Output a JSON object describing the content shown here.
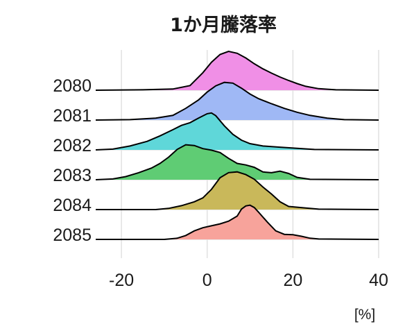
{
  "chart_data": {
    "type": "ridgeline",
    "title": "1か月騰落率",
    "xlabel": "[%]",
    "ylabel": "",
    "xlim": [
      -26,
      40
    ],
    "xticks": [
      -20,
      0,
      20,
      40
    ],
    "grid": true,
    "legend": "none",
    "series": [
      {
        "name": "2080",
        "color": "#f08fe6",
        "points": [
          [
            -26,
            0
          ],
          [
            -15,
            0.01
          ],
          [
            -8,
            0.03
          ],
          [
            -4,
            0.12
          ],
          [
            -1,
            0.45
          ],
          [
            1,
            0.72
          ],
          [
            3,
            0.92
          ],
          [
            5,
            1.0
          ],
          [
            7,
            0.95
          ],
          [
            9,
            0.83
          ],
          [
            11,
            0.68
          ],
          [
            13,
            0.55
          ],
          [
            15,
            0.44
          ],
          [
            17,
            0.34
          ],
          [
            19,
            0.25
          ],
          [
            21,
            0.17
          ],
          [
            23,
            0.1
          ],
          [
            26,
            0.04
          ],
          [
            30,
            0.01
          ],
          [
            40,
            0
          ]
        ]
      },
      {
        "name": "2081",
        "color": "#9fb8f5",
        "points": [
          [
            -26,
            0
          ],
          [
            -18,
            0.01
          ],
          [
            -12,
            0.05
          ],
          [
            -8,
            0.12
          ],
          [
            -5,
            0.3
          ],
          [
            -2,
            0.52
          ],
          [
            0,
            0.72
          ],
          [
            2,
            0.88
          ],
          [
            4,
            0.97
          ],
          [
            6,
            0.95
          ],
          [
            8,
            0.82
          ],
          [
            10,
            0.67
          ],
          [
            12,
            0.55
          ],
          [
            15,
            0.42
          ],
          [
            18,
            0.3
          ],
          [
            21,
            0.2
          ],
          [
            24,
            0.12
          ],
          [
            28,
            0.05
          ],
          [
            32,
            0.01
          ],
          [
            40,
            0
          ]
        ]
      },
      {
        "name": "2082",
        "color": "#5fd7d9",
        "points": [
          [
            -26,
            0
          ],
          [
            -22,
            0.02
          ],
          [
            -18,
            0.1
          ],
          [
            -14,
            0.22
          ],
          [
            -11,
            0.36
          ],
          [
            -8,
            0.52
          ],
          [
            -6,
            0.63
          ],
          [
            -4,
            0.7
          ],
          [
            -2,
            0.82
          ],
          [
            0,
            0.93
          ],
          [
            1,
            0.95
          ],
          [
            2,
            0.88
          ],
          [
            4,
            0.62
          ],
          [
            6,
            0.4
          ],
          [
            8,
            0.25
          ],
          [
            10,
            0.16
          ],
          [
            13,
            0.1
          ],
          [
            17,
            0.07
          ],
          [
            21,
            0.04
          ],
          [
            25,
            0.01
          ],
          [
            40,
            0
          ]
        ]
      },
      {
        "name": "2083",
        "color": "#5fcc74",
        "points": [
          [
            -26,
            0
          ],
          [
            -22,
            0.02
          ],
          [
            -19,
            0.08
          ],
          [
            -16,
            0.18
          ],
          [
            -13,
            0.3
          ],
          [
            -11,
            0.42
          ],
          [
            -9,
            0.58
          ],
          [
            -7,
            0.78
          ],
          [
            -5,
            0.9
          ],
          [
            -3,
            0.88
          ],
          [
            -1,
            0.8
          ],
          [
            1,
            0.76
          ],
          [
            3,
            0.7
          ],
          [
            5,
            0.55
          ],
          [
            7,
            0.42
          ],
          [
            9,
            0.38
          ],
          [
            11,
            0.32
          ],
          [
            13,
            0.2
          ],
          [
            15,
            0.18
          ],
          [
            17,
            0.22
          ],
          [
            19,
            0.16
          ],
          [
            21,
            0.06
          ],
          [
            24,
            0.01
          ],
          [
            40,
            0
          ]
        ]
      },
      {
        "name": "2084",
        "color": "#c9b85a",
        "points": [
          [
            -26,
            0
          ],
          [
            -12,
            0
          ],
          [
            -9,
            0.03
          ],
          [
            -6,
            0.1
          ],
          [
            -3,
            0.2
          ],
          [
            -1,
            0.3
          ],
          [
            1,
            0.52
          ],
          [
            3,
            0.82
          ],
          [
            5,
            0.95
          ],
          [
            7,
            0.97
          ],
          [
            9,
            0.9
          ],
          [
            11,
            0.78
          ],
          [
            13,
            0.58
          ],
          [
            15,
            0.4
          ],
          [
            17,
            0.2
          ],
          [
            19,
            0.08
          ],
          [
            21,
            0.06
          ],
          [
            23,
            0.04
          ],
          [
            26,
            0.01
          ],
          [
            40,
            0
          ]
        ]
      },
      {
        "name": "2085",
        "color": "#f7a39b",
        "points": [
          [
            -26,
            0
          ],
          [
            -10,
            0
          ],
          [
            -7,
            0.03
          ],
          [
            -5,
            0.1
          ],
          [
            -3,
            0.22
          ],
          [
            -1,
            0.3
          ],
          [
            1,
            0.35
          ],
          [
            3,
            0.4
          ],
          [
            5,
            0.47
          ],
          [
            7,
            0.6
          ],
          [
            8,
            0.78
          ],
          [
            9,
            0.86
          ],
          [
            10,
            0.88
          ],
          [
            11,
            0.82
          ],
          [
            12,
            0.7
          ],
          [
            14,
            0.45
          ],
          [
            16,
            0.22
          ],
          [
            18,
            0.13
          ],
          [
            20,
            0.12
          ],
          [
            22,
            0.08
          ],
          [
            24,
            0.03
          ],
          [
            26,
            0.01
          ],
          [
            40,
            0
          ]
        ]
      }
    ]
  }
}
